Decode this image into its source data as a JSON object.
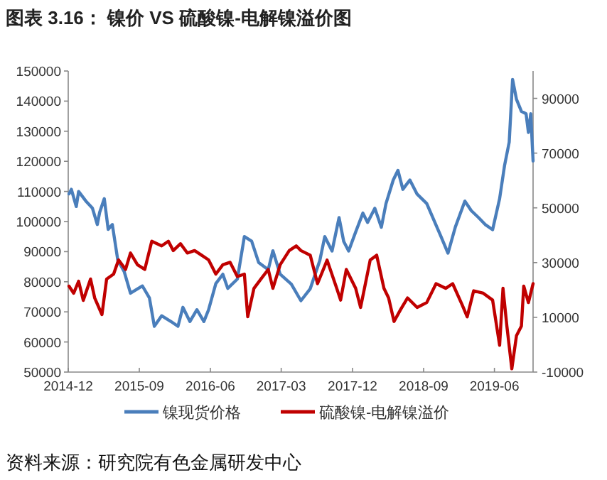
{
  "chart_data": {
    "type": "line",
    "title": "图表 3.16： 镍价 VS 硫酸镍-电解镍溢价图",
    "annotations": [
      "资料来源：研究院有色金属研发中心"
    ],
    "xlim": [
      "2014-12-01",
      "2019-10-28"
    ],
    "xticks": [
      "2014-12",
      "2015-09",
      "2016-06",
      "2017-03",
      "2017-12",
      "2018-09",
      "2019-06"
    ],
    "ylim": [
      50000,
      150000
    ],
    "yticks": [
      50000,
      60000,
      70000,
      80000,
      90000,
      100000,
      110000,
      120000,
      130000,
      140000,
      150000
    ],
    "y2lim": [
      -10000,
      100000
    ],
    "y2ticks": [
      -10000,
      10000,
      30000,
      50000,
      70000,
      90000
    ],
    "grid": false,
    "legend": "bottom",
    "line_style": "solid",
    "marker": "none",
    "series": [
      {
        "name": "镍现货价格",
        "color": "#4a7ebb",
        "x": [
          "2014-12-04",
          "2014-12-13",
          "2015-01-01",
          "2015-01-10",
          "2015-02-07",
          "2015-03-04",
          "2015-03-23",
          "2015-04-01",
          "2015-04-19",
          "2015-05-04",
          "2015-05-20",
          "2015-06-10",
          "2015-07-05",
          "2015-07-29",
          "2015-09-13",
          "2015-10-10",
          "2015-10-29",
          "2015-11-26",
          "2016-01-01",
          "2016-01-28",
          "2016-02-16",
          "2016-03-14",
          "2016-04-10",
          "2016-05-07",
          "2016-05-25",
          "2016-06-22",
          "2016-07-19",
          "2016-08-07",
          "2016-09-13",
          "2016-10-10",
          "2016-11-07",
          "2016-12-04",
          "2017-01-10",
          "2017-01-28",
          "2017-02-25",
          "2017-04-09",
          "2017-05-16",
          "2017-06-21",
          "2017-07-28",
          "2017-08-16",
          "2017-09-13",
          "2017-10-10",
          "2017-10-28",
          "2017-11-16",
          "2017-12-13",
          "2018-01-10",
          "2018-01-28",
          "2018-02-25",
          "2018-03-22",
          "2018-04-09",
          "2018-05-07",
          "2018-05-25",
          "2018-06-13",
          "2018-07-10",
          "2018-08-07",
          "2018-09-13",
          "2018-11-07",
          "2018-12-04",
          "2019-01-01",
          "2019-02-07",
          "2019-03-04",
          "2019-04-01",
          "2019-04-28",
          "2019-05-25",
          "2019-06-21",
          "2019-07-10",
          "2019-07-28",
          "2019-08-10",
          "2019-08-25",
          "2019-09-13",
          "2019-10-01",
          "2019-10-10",
          "2019-10-19",
          "2019-10-28"
        ],
        "values": [
          109200,
          110700,
          105000,
          110000,
          106800,
          104500,
          99000,
          103000,
          107600,
          97400,
          99000,
          87200,
          83300,
          76200,
          78600,
          74600,
          65200,
          68700,
          66800,
          65200,
          71500,
          66800,
          70700,
          66800,
          70700,
          79400,
          82500,
          77800,
          80900,
          95000,
          93500,
          86400,
          84000,
          90300,
          82500,
          79200,
          73700,
          77700,
          87100,
          95000,
          90200,
          101300,
          93400,
          90200,
          96500,
          102800,
          99700,
          104400,
          98100,
          106000,
          113800,
          117000,
          110700,
          113800,
          109100,
          106000,
          95000,
          89500,
          98100,
          106800,
          103600,
          101300,
          98900,
          97300,
          107600,
          118600,
          126400,
          147200,
          140600,
          136600,
          135800,
          129600,
          135800,
          120100
        ]
      },
      {
        "name": "硫酸镍-电解镍溢价",
        "color": "#c00000",
        "axis": "y2",
        "x": [
          "2014-12-04",
          "2014-12-22",
          "2015-01-10",
          "2015-01-28",
          "2015-02-25",
          "2015-03-13",
          "2015-04-10",
          "2015-04-28",
          "2015-05-25",
          "2015-06-13",
          "2015-07-10",
          "2015-07-29",
          "2015-08-25",
          "2015-09-22",
          "2015-10-19",
          "2015-11-26",
          "2015-12-22",
          "2016-01-10",
          "2016-02-07",
          "2016-03-04",
          "2016-04-01",
          "2016-04-28",
          "2016-05-25",
          "2016-06-22",
          "2016-07-19",
          "2016-08-16",
          "2016-09-13",
          "2016-10-10",
          "2016-10-23",
          "2016-11-16",
          "2016-12-13",
          "2017-01-10",
          "2017-01-28",
          "2017-02-25",
          "2017-04-01",
          "2017-04-28",
          "2017-05-16",
          "2017-06-21",
          "2017-07-19",
          "2017-08-25",
          "2017-10-01",
          "2017-10-16",
          "2017-11-07",
          "2017-12-13",
          "2018-01-01",
          "2018-02-07",
          "2018-03-04",
          "2018-04-01",
          "2018-04-19",
          "2018-05-10",
          "2018-06-04",
          "2018-07-01",
          "2018-08-07",
          "2018-09-13",
          "2018-10-19",
          "2018-11-25",
          "2018-12-22",
          "2019-01-28",
          "2019-02-16",
          "2019-03-13",
          "2019-04-19",
          "2019-05-25",
          "2019-06-21",
          "2019-07-04",
          "2019-07-19",
          "2019-08-07",
          "2019-08-25",
          "2019-09-13",
          "2019-09-22",
          "2019-10-10",
          "2019-10-28"
        ],
        "values": [
          21400,
          18800,
          23200,
          16200,
          24000,
          17100,
          11000,
          24000,
          25800,
          31000,
          27500,
          33500,
          29200,
          27500,
          37800,
          36100,
          37800,
          34400,
          36900,
          33500,
          34400,
          32700,
          31000,
          25800,
          29200,
          30100,
          24900,
          25800,
          10200,
          20600,
          24000,
          27500,
          20600,
          29200,
          34400,
          36100,
          34400,
          32700,
          22300,
          30900,
          20600,
          16300,
          27500,
          20600,
          13600,
          30900,
          32700,
          20600,
          17100,
          8500,
          12800,
          17100,
          13600,
          15400,
          22300,
          20600,
          22300,
          14500,
          10200,
          19700,
          18800,
          16300,
          -200,
          20600,
          6800,
          -8800,
          3300,
          6800,
          21400,
          15400,
          22300
        ]
      }
    ]
  }
}
